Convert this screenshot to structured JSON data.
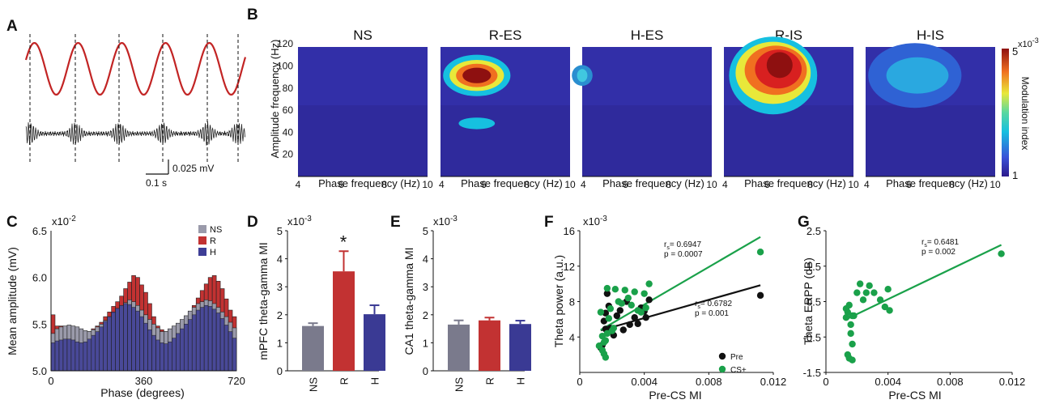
{
  "panel_labels": {
    "a": "A",
    "b": "B",
    "c": "C",
    "d": "D",
    "e": "E",
    "f": "F",
    "g": "G"
  },
  "colors": {
    "ns": "#7a7a8c",
    "r": "#c23232",
    "h": "#3a3a94",
    "green": "#1aa14a",
    "black": "#111111",
    "signal_red": "#c22424"
  },
  "trace": {
    "scale_amplitude": "0.025 mV",
    "scale_time": "0.1 s"
  },
  "heatmap": {
    "titles": [
      "NS",
      "R-ES",
      "H-ES",
      "R-IS",
      "H-IS"
    ],
    "ylabel": "Amplitude frequency (Hz)",
    "xlabel": "Phase frequency (Hz)",
    "x_ticks": [
      "4",
      "6",
      "8",
      "10"
    ],
    "y_ticks": [
      "20",
      "40",
      "60",
      "80",
      "100",
      "120"
    ],
    "colorbar_label": "Modulation index",
    "colorbar_max": "5",
    "colorbar_min": "1",
    "colorbar_exp": "x10",
    "colorbar_exp_power": "-3"
  },
  "chart_data": [
    {
      "type": "bar",
      "panel": "C",
      "ylabel": "Mean amplitude (mV)",
      "xlabel": "Phase (degrees)",
      "y_multiplier": "x10",
      "y_multiplier_power": "-2",
      "y_ticks": [
        "5.0",
        "5.5",
        "6.0",
        "6.5"
      ],
      "x_ticks": [
        "0",
        "360",
        "720"
      ],
      "ylim": [
        5.0,
        6.5
      ],
      "xlim": [
        0,
        720
      ],
      "series": [
        {
          "name": "NS",
          "key": "ns",
          "values": [
            5.4,
            5.45,
            5.47,
            5.48,
            5.49,
            5.48,
            5.47,
            5.45,
            5.43,
            5.42,
            5.44,
            5.47,
            5.5,
            5.54,
            5.58,
            5.62,
            5.66,
            5.7,
            5.73,
            5.76,
            5.74,
            5.7,
            5.65,
            5.6,
            5.55,
            5.5,
            5.46,
            5.42,
            5.42,
            5.45,
            5.48,
            5.51,
            5.55,
            5.59,
            5.64,
            5.68,
            5.72,
            5.74,
            5.76,
            5.75,
            5.72,
            5.68,
            5.63,
            5.58,
            5.52,
            5.46
          ]
        },
        {
          "name": "R",
          "key": "r",
          "values": [
            5.6,
            5.48,
            5.48,
            5.47,
            5.46,
            5.44,
            5.42,
            5.41,
            5.41,
            5.42,
            5.45,
            5.48,
            5.52,
            5.58,
            5.63,
            5.69,
            5.74,
            5.8,
            5.88,
            5.95,
            6.02,
            6.0,
            5.92,
            5.84,
            5.72,
            5.58,
            5.48,
            5.44,
            5.42,
            5.43,
            5.45,
            5.48,
            5.52,
            5.57,
            5.63,
            5.7,
            5.78,
            5.86,
            5.93,
            6.0,
            6.02,
            5.96,
            5.88,
            5.77,
            5.65,
            5.58
          ]
        },
        {
          "name": "H",
          "key": "h",
          "values": [
            5.3,
            5.32,
            5.33,
            5.34,
            5.34,
            5.33,
            5.31,
            5.3,
            5.31,
            5.34,
            5.38,
            5.42,
            5.47,
            5.53,
            5.58,
            5.63,
            5.67,
            5.7,
            5.72,
            5.71,
            5.68,
            5.64,
            5.58,
            5.51,
            5.44,
            5.38,
            5.33,
            5.3,
            5.29,
            5.31,
            5.35,
            5.4,
            5.45,
            5.5,
            5.55,
            5.6,
            5.65,
            5.68,
            5.7,
            5.69,
            5.66,
            5.62,
            5.56,
            5.49,
            5.42,
            5.35
          ]
        }
      ],
      "legend": [
        "NS",
        "R",
        "H"
      ],
      "legend_position": "top-right"
    },
    {
      "type": "bar",
      "panel": "D",
      "ylabel": "mPFC theta-gamma MI",
      "y_multiplier": "x10",
      "y_multiplier_power": "-3",
      "categories": [
        "NS",
        "R",
        "H"
      ],
      "values": [
        1.6,
        3.55,
        2.02
      ],
      "errors": [
        0.1,
        0.72,
        0.32
      ],
      "ylim": [
        0,
        5
      ],
      "y_ticks": [
        "0",
        "1",
        "2",
        "3",
        "4",
        "5"
      ],
      "significance": {
        "category": "R",
        "mark": "*"
      }
    },
    {
      "type": "bar",
      "panel": "E",
      "ylabel": "CA1 theta-gamma MI",
      "y_multiplier": "x10",
      "y_multiplier_power": "-3",
      "categories": [
        "NS",
        "R",
        "H"
      ],
      "values": [
        1.65,
        1.8,
        1.67
      ],
      "errors": [
        0.15,
        0.1,
        0.12
      ],
      "ylim": [
        0,
        5
      ],
      "y_ticks": [
        "0",
        "1",
        "2",
        "3",
        "4",
        "5"
      ]
    },
    {
      "type": "scatter",
      "panel": "F",
      "ylabel": "Theta power (a.u.)",
      "xlabel": "Pre-CS MI",
      "y_multiplier": "x10",
      "y_multiplier_power": "-3",
      "xlim": [
        0,
        0.012
      ],
      "ylim": [
        0,
        16
      ],
      "x_ticks": [
        "0",
        "0.004",
        "0.008",
        "0.012"
      ],
      "y_ticks": [
        "4",
        "8",
        "12",
        "16"
      ],
      "series": [
        {
          "name": "Pre",
          "key": "black",
          "points": [
            [
              0.0013,
              2.8
            ],
            [
              0.0014,
              3.1
            ],
            [
              0.0015,
              5.8
            ],
            [
              0.0016,
              4.9
            ],
            [
              0.0016,
              6.7
            ],
            [
              0.0017,
              8.9
            ],
            [
              0.0018,
              7.5
            ],
            [
              0.0019,
              5.0
            ],
            [
              0.0021,
              4.2
            ],
            [
              0.0023,
              6.4
            ],
            [
              0.0025,
              7.0
            ],
            [
              0.0027,
              4.8
            ],
            [
              0.0029,
              8.0
            ],
            [
              0.0031,
              5.4
            ],
            [
              0.0034,
              6.2
            ],
            [
              0.0036,
              5.5
            ],
            [
              0.0038,
              7.3
            ],
            [
              0.004,
              6.9
            ],
            [
              0.0041,
              6.2
            ],
            [
              0.0043,
              8.2
            ],
            [
              0.0112,
              8.7
            ]
          ],
          "fit": [
            [
              0.0013,
              4.75
            ],
            [
              0.0112,
              9.85
            ]
          ],
          "stats": {
            "r": "0.6782",
            "p": "p = 0.001"
          }
        },
        {
          "name": "CS+",
          "key": "green",
          "points": [
            [
              0.0012,
              3.0
            ],
            [
              0.0013,
              6.8
            ],
            [
              0.0014,
              2.5
            ],
            [
              0.0014,
              4.1
            ],
            [
              0.0015,
              3.4
            ],
            [
              0.0015,
              2.1
            ],
            [
              0.0016,
              1.7
            ],
            [
              0.0016,
              3.6
            ],
            [
              0.0017,
              9.5
            ],
            [
              0.0017,
              4.4
            ],
            [
              0.0018,
              6.1
            ],
            [
              0.0019,
              7.2
            ],
            [
              0.002,
              4.7
            ],
            [
              0.0021,
              5.0
            ],
            [
              0.0022,
              9.4
            ],
            [
              0.0024,
              8.0
            ],
            [
              0.0026,
              7.8
            ],
            [
              0.0028,
              9.3
            ],
            [
              0.003,
              8.4
            ],
            [
              0.0032,
              7.6
            ],
            [
              0.0034,
              9.1
            ],
            [
              0.0036,
              7.0
            ],
            [
              0.0038,
              6.8
            ],
            [
              0.004,
              8.9
            ],
            [
              0.0041,
              7.3
            ],
            [
              0.0043,
              10.0
            ],
            [
              0.0112,
              13.6
            ]
          ],
          "fit": [
            [
              0.0013,
              4.8
            ],
            [
              0.0112,
              15.3
            ]
          ],
          "stats": {
            "r": "0.6947",
            "p": "p = 0.0007"
          }
        }
      ],
      "legend": [
        "Pre",
        "CS+"
      ],
      "legend_position": "bottom-right"
    },
    {
      "type": "scatter",
      "panel": "G",
      "ylabel": "Theta ERPP (dB)",
      "xlabel": "Pre-CS MI",
      "xlim": [
        0,
        0.012
      ],
      "ylim": [
        -1.5,
        2.5
      ],
      "x_ticks": [
        "0",
        "0.004",
        "0.008",
        "0.012"
      ],
      "y_ticks": [
        "-1.5",
        "-0.5",
        "0.5",
        "1.5",
        "2.5"
      ],
      "series": [
        {
          "name": "CS+",
          "key": "green",
          "points": [
            [
              0.0013,
              0.3
            ],
            [
              0.0013,
              0.05
            ],
            [
              0.0014,
              -1.0
            ],
            [
              0.0014,
              0.2
            ],
            [
              0.0015,
              -1.1
            ],
            [
              0.0015,
              0.4
            ],
            [
              0.0016,
              -0.4
            ],
            [
              0.0016,
              -0.15
            ],
            [
              0.0017,
              0.1
            ],
            [
              0.0017,
              -0.7
            ],
            [
              0.0017,
              -1.15
            ],
            [
              0.0018,
              0.1
            ],
            [
              0.002,
              0.75
            ],
            [
              0.0022,
              1.0
            ],
            [
              0.0024,
              0.55
            ],
            [
              0.0026,
              0.75
            ],
            [
              0.0028,
              0.95
            ],
            [
              0.0031,
              0.75
            ],
            [
              0.0035,
              0.55
            ],
            [
              0.0038,
              0.35
            ],
            [
              0.004,
              0.85
            ],
            [
              0.0041,
              0.25
            ],
            [
              0.0113,
              1.85
            ]
          ],
          "fit": [
            [
              0.0013,
              0.0
            ],
            [
              0.0113,
              2.1
            ]
          ],
          "stats": {
            "r": "0.6481",
            "p": "p = 0.002"
          }
        }
      ]
    }
  ]
}
